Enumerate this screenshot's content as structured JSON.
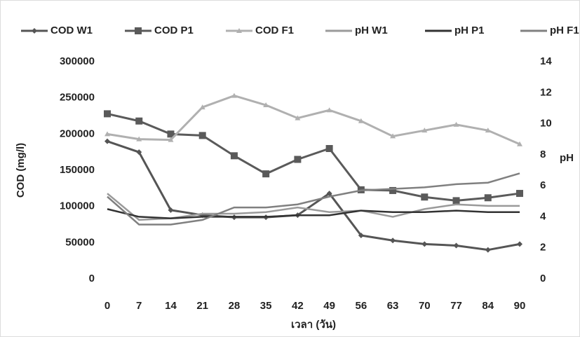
{
  "chart_data": {
    "type": "line",
    "x_label": "เวลา (วัน)",
    "y_label": "COD (mg/l)",
    "y2_label": "pH",
    "categories": [
      "0",
      "7",
      "14",
      "21",
      "28",
      "35",
      "42",
      "49",
      "56",
      "63",
      "70",
      "77",
      "84",
      "90"
    ],
    "ylim": [
      0,
      300000
    ],
    "yticks": [
      0,
      50000,
      100000,
      150000,
      200000,
      250000,
      300000
    ],
    "y2lim": [
      0,
      14
    ],
    "y2ticks": [
      0,
      2,
      4,
      6,
      8,
      10,
      12,
      14
    ],
    "grid": false,
    "legend": "top",
    "series": [
      {
        "name": "COD W1",
        "color": "#555555",
        "marker": "diamond",
        "values": [
          190000,
          175000,
          95000,
          88000,
          85000,
          85000,
          88000,
          118000,
          60000,
          53000,
          48000,
          46000,
          40000,
          48000
        ]
      },
      {
        "name": "COD P1",
        "color": "#5a5a5a",
        "marker": "square",
        "values": [
          228000,
          218000,
          200000,
          198000,
          170000,
          145000,
          165000,
          180000,
          123000,
          122000,
          113000,
          108000,
          112000,
          118000
        ]
      },
      {
        "name": "COD F1",
        "color": "#b0b0b0",
        "marker": "triangle",
        "values": [
          200000,
          193000,
          192000,
          237000,
          253000,
          240000,
          222000,
          233000,
          218000,
          197000,
          205000,
          213000,
          205000,
          186000
        ]
      },
      {
        "name": "pH W1",
        "color": "#9a9a9a",
        "marker": "none",
        "axis": "y2",
        "values": [
          5.5,
          3.8,
          3.9,
          4.2,
          4.2,
          4.3,
          4.6,
          4.3,
          4.4,
          4.0,
          4.5,
          4.8,
          4.7,
          4.7
        ]
      },
      {
        "name": "pH P1",
        "color": "#333333",
        "marker": "none",
        "axis": "y2",
        "values": [
          4.5,
          4.0,
          3.9,
          4.0,
          4.0,
          4.0,
          4.1,
          4.1,
          4.4,
          4.3,
          4.3,
          4.4,
          4.3,
          4.3
        ]
      },
      {
        "name": "pH F1",
        "color": "#808080",
        "marker": "none",
        "axis": "y2",
        "values": [
          5.3,
          3.5,
          3.5,
          3.8,
          4.6,
          4.6,
          4.8,
          5.3,
          5.7,
          5.8,
          5.9,
          6.1,
          6.2,
          6.8
        ]
      }
    ]
  }
}
